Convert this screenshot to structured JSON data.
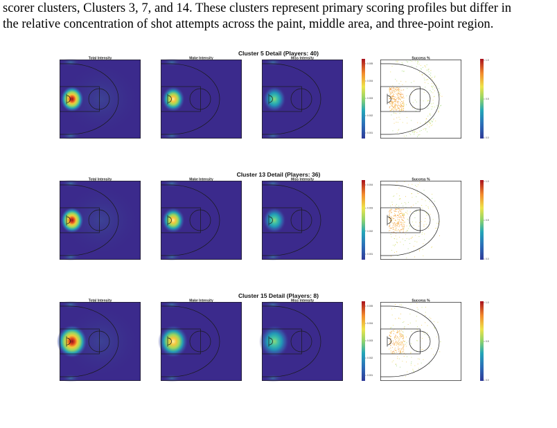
{
  "paragraph": {
    "line1": "scorer clusters, Clusters 3, 7, and 14. These clusters represent primary scoring profiles but differ in",
    "line2": "the relative concentration of shot attempts across the paint, middle area, and three-point region."
  },
  "figure": {
    "panel_titles": [
      "Total Intensity",
      "Make Intensity",
      "Miss Intensity",
      "Success %"
    ],
    "colors": {
      "background_dark": "#3b2a8c",
      "hot": "#c0201f",
      "line": "#1a1a1a"
    },
    "clusters": [
      {
        "title": "Cluster 5 Detail (Players: 40)",
        "intensity_ticks": [
          "0.005",
          "0.004",
          "0.003",
          "0.002",
          "0.001"
        ],
        "success_ticks": [
          "1.0",
          "0.5",
          "0.0"
        ]
      },
      {
        "title": "Cluster 13 Detail (Players: 36)",
        "intensity_ticks": [
          "0.004",
          "0.003",
          "0.002",
          "0.001"
        ],
        "success_ticks": [
          "1.0",
          "0.5",
          "0.0"
        ]
      },
      {
        "title": "Cluster 15 Detail (Players: 8)",
        "intensity_ticks": [
          "0.005",
          "0.004",
          "0.003",
          "0.002",
          "0.001"
        ],
        "success_ticks": [
          "1.0",
          "0.5",
          "0.0"
        ]
      }
    ]
  }
}
